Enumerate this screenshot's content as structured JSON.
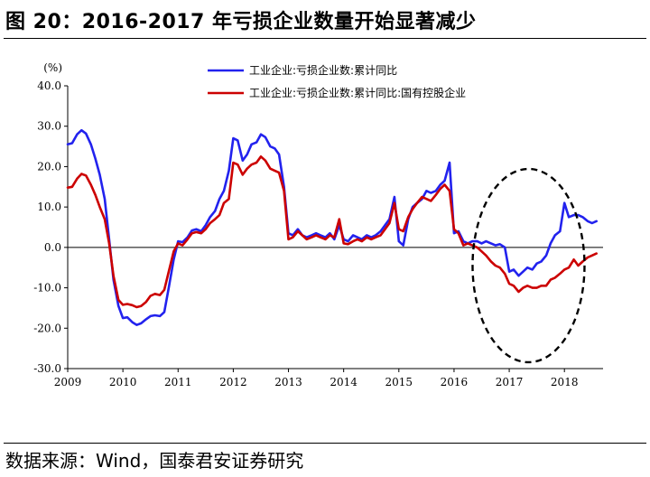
{
  "figure_title": "图 20：2016-2017 年亏损企业数量开始显著减少",
  "source_note": "数据来源：Wind，国泰君安证券研究",
  "chart_data": {
    "type": "line",
    "title": "",
    "unit_label": "(%)",
    "xlabel": "",
    "ylabel": "",
    "ylim": [
      -30,
      40
    ],
    "yticks": [
      40,
      30,
      20,
      10,
      0,
      -10,
      -20,
      -30
    ],
    "ytick_labels": [
      "40.0",
      "30.0",
      "20.0",
      "10.0",
      "0.0",
      "-10.0",
      "-20.0",
      "-30.0"
    ],
    "xlim": [
      2009,
      2018.7
    ],
    "xticks": [
      2009,
      2010,
      2011,
      2012,
      2013,
      2014,
      2015,
      2016,
      2017,
      2018
    ],
    "xtick_labels": [
      "2009",
      "2010",
      "2011",
      "2012",
      "2013",
      "2014",
      "2015",
      "2016",
      "2017",
      "2018"
    ],
    "grid": false,
    "legend_position": "top-center",
    "annotation": "dashed ellipse around 2016.3-2018.4",
    "series": [
      {
        "name": "工业企业:亏损企业数:累计同比",
        "color": "#2222ee",
        "points": [
          [
            2009.0,
            25.5
          ],
          [
            2009.08,
            25.8
          ],
          [
            2009.17,
            28.0
          ],
          [
            2009.25,
            29.0
          ],
          [
            2009.33,
            28.2
          ],
          [
            2009.42,
            25.5
          ],
          [
            2009.5,
            22.0
          ],
          [
            2009.58,
            18.0
          ],
          [
            2009.67,
            12.0
          ],
          [
            2009.75,
            2.0
          ],
          [
            2009.83,
            -8.0
          ],
          [
            2009.92,
            -14.5
          ],
          [
            2010.0,
            -17.5
          ],
          [
            2010.08,
            -17.3
          ],
          [
            2010.17,
            -18.5
          ],
          [
            2010.25,
            -19.2
          ],
          [
            2010.33,
            -18.8
          ],
          [
            2010.42,
            -17.8
          ],
          [
            2010.5,
            -17.0
          ],
          [
            2010.58,
            -16.8
          ],
          [
            2010.67,
            -17.0
          ],
          [
            2010.75,
            -16.0
          ],
          [
            2010.83,
            -10.0
          ],
          [
            2010.92,
            -3.0
          ],
          [
            2011.0,
            1.5
          ],
          [
            2011.08,
            1.3
          ],
          [
            2011.17,
            2.5
          ],
          [
            2011.25,
            4.2
          ],
          [
            2011.33,
            4.5
          ],
          [
            2011.42,
            4.0
          ],
          [
            2011.5,
            5.5
          ],
          [
            2011.58,
            7.5
          ],
          [
            2011.67,
            9.0
          ],
          [
            2011.75,
            12.0
          ],
          [
            2011.83,
            14.0
          ],
          [
            2011.92,
            19.0
          ],
          [
            2012.0,
            27.0
          ],
          [
            2012.08,
            26.5
          ],
          [
            2012.17,
            21.5
          ],
          [
            2012.25,
            23.0
          ],
          [
            2012.33,
            25.5
          ],
          [
            2012.42,
            26.0
          ],
          [
            2012.5,
            28.0
          ],
          [
            2012.58,
            27.3
          ],
          [
            2012.67,
            25.0
          ],
          [
            2012.75,
            24.5
          ],
          [
            2012.83,
            23.0
          ],
          [
            2012.92,
            15.0
          ],
          [
            2013.0,
            3.5
          ],
          [
            2013.08,
            3.0
          ],
          [
            2013.17,
            4.5
          ],
          [
            2013.25,
            3.0
          ],
          [
            2013.33,
            2.5
          ],
          [
            2013.42,
            3.0
          ],
          [
            2013.5,
            3.5
          ],
          [
            2013.58,
            3.0
          ],
          [
            2013.67,
            2.5
          ],
          [
            2013.75,
            3.5
          ],
          [
            2013.83,
            2.0
          ],
          [
            2013.92,
            5.5
          ],
          [
            2014.0,
            2.0
          ],
          [
            2014.08,
            1.5
          ],
          [
            2014.17,
            3.0
          ],
          [
            2014.25,
            2.5
          ],
          [
            2014.33,
            2.0
          ],
          [
            2014.42,
            3.0
          ],
          [
            2014.5,
            2.5
          ],
          [
            2014.58,
            3.0
          ],
          [
            2014.67,
            4.0
          ],
          [
            2014.75,
            5.5
          ],
          [
            2014.83,
            7.0
          ],
          [
            2014.92,
            12.5
          ],
          [
            2015.0,
            1.5
          ],
          [
            2015.08,
            0.5
          ],
          [
            2015.17,
            7.0
          ],
          [
            2015.25,
            10.0
          ],
          [
            2015.33,
            11.0
          ],
          [
            2015.42,
            12.0
          ],
          [
            2015.5,
            14.0
          ],
          [
            2015.58,
            13.5
          ],
          [
            2015.67,
            14.0
          ],
          [
            2015.75,
            15.5
          ],
          [
            2015.83,
            16.5
          ],
          [
            2015.92,
            21.0
          ],
          [
            2016.0,
            3.5
          ],
          [
            2016.08,
            4.0
          ],
          [
            2016.17,
            1.5
          ],
          [
            2016.25,
            1.0
          ],
          [
            2016.33,
            1.5
          ],
          [
            2016.42,
            1.5
          ],
          [
            2016.5,
            1.0
          ],
          [
            2016.58,
            1.5
          ],
          [
            2016.67,
            1.0
          ],
          [
            2016.75,
            0.5
          ],
          [
            2016.83,
            0.8
          ],
          [
            2016.92,
            0.0
          ],
          [
            2017.0,
            -6.0
          ],
          [
            2017.08,
            -5.5
          ],
          [
            2017.17,
            -7.0
          ],
          [
            2017.25,
            -6.0
          ],
          [
            2017.33,
            -5.0
          ],
          [
            2017.42,
            -5.5
          ],
          [
            2017.5,
            -4.0
          ],
          [
            2017.58,
            -3.5
          ],
          [
            2017.67,
            -2.0
          ],
          [
            2017.75,
            1.0
          ],
          [
            2017.83,
            3.0
          ],
          [
            2017.92,
            4.0
          ],
          [
            2018.0,
            11.0
          ],
          [
            2018.08,
            7.5
          ],
          [
            2018.17,
            8.0
          ],
          [
            2018.25,
            8.0
          ],
          [
            2018.33,
            7.5
          ],
          [
            2018.42,
            6.5
          ],
          [
            2018.5,
            6.0
          ],
          [
            2018.58,
            6.5
          ]
        ]
      },
      {
        "name": "工业企业:亏损企业数:累计同比:国有控股企业",
        "color": "#cc0000",
        "points": [
          [
            2009.0,
            14.8
          ],
          [
            2009.08,
            15.0
          ],
          [
            2009.17,
            17.0
          ],
          [
            2009.25,
            18.2
          ],
          [
            2009.33,
            17.8
          ],
          [
            2009.42,
            15.5
          ],
          [
            2009.5,
            13.0
          ],
          [
            2009.58,
            10.0
          ],
          [
            2009.67,
            7.0
          ],
          [
            2009.75,
            1.0
          ],
          [
            2009.83,
            -7.0
          ],
          [
            2009.92,
            -13.0
          ],
          [
            2010.0,
            -14.2
          ],
          [
            2010.08,
            -14.0
          ],
          [
            2010.17,
            -14.3
          ],
          [
            2010.25,
            -14.8
          ],
          [
            2010.33,
            -14.5
          ],
          [
            2010.42,
            -13.5
          ],
          [
            2010.5,
            -12.0
          ],
          [
            2010.58,
            -11.5
          ],
          [
            2010.67,
            -11.8
          ],
          [
            2010.75,
            -10.5
          ],
          [
            2010.83,
            -6.0
          ],
          [
            2010.92,
            -1.0
          ],
          [
            2011.0,
            1.0
          ],
          [
            2011.08,
            0.5
          ],
          [
            2011.17,
            2.0
          ],
          [
            2011.25,
            3.5
          ],
          [
            2011.33,
            3.8
          ],
          [
            2011.42,
            3.5
          ],
          [
            2011.5,
            4.5
          ],
          [
            2011.58,
            6.0
          ],
          [
            2011.67,
            7.0
          ],
          [
            2011.75,
            8.0
          ],
          [
            2011.83,
            11.0
          ],
          [
            2011.92,
            12.0
          ],
          [
            2012.0,
            21.0
          ],
          [
            2012.08,
            20.5
          ],
          [
            2012.17,
            18.0
          ],
          [
            2012.25,
            19.5
          ],
          [
            2012.33,
            20.5
          ],
          [
            2012.42,
            21.0
          ],
          [
            2012.5,
            22.5
          ],
          [
            2012.58,
            21.5
          ],
          [
            2012.67,
            19.5
          ],
          [
            2012.75,
            19.0
          ],
          [
            2012.83,
            18.5
          ],
          [
            2012.92,
            14.0
          ],
          [
            2013.0,
            2.0
          ],
          [
            2013.08,
            2.5
          ],
          [
            2013.17,
            4.0
          ],
          [
            2013.25,
            3.0
          ],
          [
            2013.33,
            2.0
          ],
          [
            2013.42,
            2.5
          ],
          [
            2013.5,
            3.0
          ],
          [
            2013.58,
            2.5
          ],
          [
            2013.67,
            2.0
          ],
          [
            2013.75,
            3.0
          ],
          [
            2013.83,
            2.5
          ],
          [
            2013.92,
            7.0
          ],
          [
            2014.0,
            1.0
          ],
          [
            2014.08,
            0.8
          ],
          [
            2014.17,
            1.5
          ],
          [
            2014.25,
            2.0
          ],
          [
            2014.33,
            1.5
          ],
          [
            2014.42,
            2.5
          ],
          [
            2014.5,
            2.0
          ],
          [
            2014.58,
            2.5
          ],
          [
            2014.67,
            3.0
          ],
          [
            2014.75,
            4.5
          ],
          [
            2014.83,
            6.0
          ],
          [
            2014.92,
            11.0
          ],
          [
            2015.0,
            4.5
          ],
          [
            2015.08,
            4.0
          ],
          [
            2015.17,
            7.5
          ],
          [
            2015.25,
            9.5
          ],
          [
            2015.33,
            11.0
          ],
          [
            2015.42,
            12.5
          ],
          [
            2015.5,
            12.0
          ],
          [
            2015.58,
            11.5
          ],
          [
            2015.67,
            13.0
          ],
          [
            2015.75,
            14.5
          ],
          [
            2015.83,
            15.5
          ],
          [
            2015.92,
            14.0
          ],
          [
            2016.0,
            4.5
          ],
          [
            2016.08,
            3.5
          ],
          [
            2016.17,
            0.5
          ],
          [
            2016.25,
            1.0
          ],
          [
            2016.33,
            0.5
          ],
          [
            2016.42,
            0.0
          ],
          [
            2016.5,
            -1.0
          ],
          [
            2016.58,
            -2.0
          ],
          [
            2016.67,
            -3.5
          ],
          [
            2016.75,
            -4.5
          ],
          [
            2016.83,
            -5.0
          ],
          [
            2016.92,
            -6.5
          ],
          [
            2017.0,
            -9.0
          ],
          [
            2017.08,
            -9.5
          ],
          [
            2017.17,
            -11.0
          ],
          [
            2017.25,
            -10.0
          ],
          [
            2017.33,
            -9.5
          ],
          [
            2017.42,
            -10.0
          ],
          [
            2017.5,
            -10.0
          ],
          [
            2017.58,
            -9.5
          ],
          [
            2017.67,
            -9.5
          ],
          [
            2017.75,
            -8.0
          ],
          [
            2017.83,
            -7.5
          ],
          [
            2017.92,
            -6.5
          ],
          [
            2018.0,
            -5.5
          ],
          [
            2018.08,
            -5.0
          ],
          [
            2018.17,
            -3.0
          ],
          [
            2018.25,
            -4.5
          ],
          [
            2018.33,
            -3.5
          ],
          [
            2018.42,
            -2.5
          ],
          [
            2018.5,
            -2.0
          ],
          [
            2018.58,
            -1.5
          ]
        ]
      }
    ]
  }
}
